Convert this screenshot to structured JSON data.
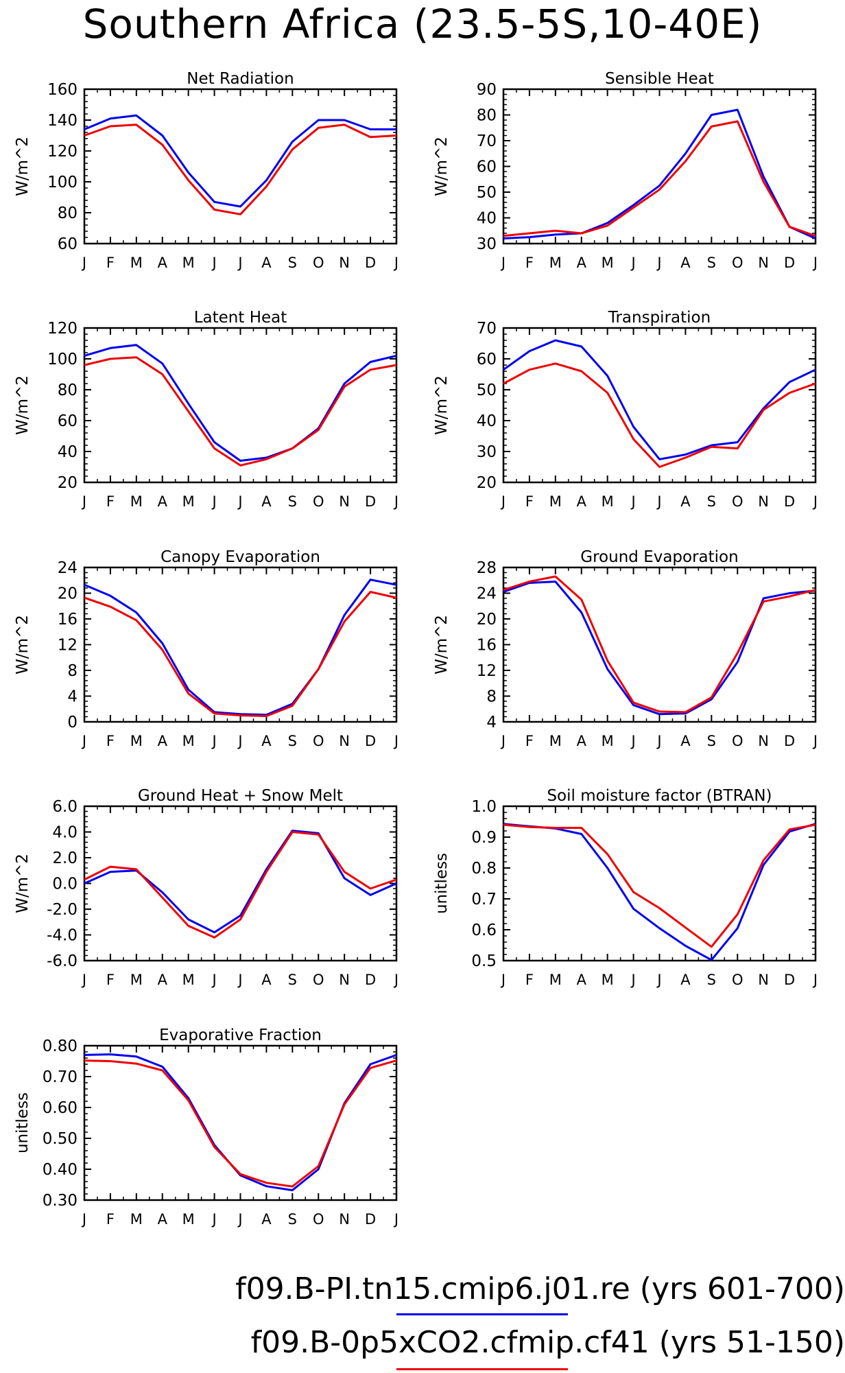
{
  "title": "Southern Africa (23.5-5S,10-40E)",
  "months": [
    "J",
    "F",
    "M",
    "A",
    "M",
    "J",
    "J",
    "A",
    "S",
    "O",
    "N",
    "D",
    "J"
  ],
  "colors": {
    "blue": "#0000ee",
    "red": "#ee0000"
  },
  "legend": [
    {
      "text": "f09.B-PI.tn15.cmip6.j01.re (yrs 601-700)",
      "color": "#0000ee"
    },
    {
      "text": "f09.B-0p5xCO2.cfmip.cf41 (yrs 51-150)",
      "color": "#ee0000"
    }
  ],
  "chart_data": [
    {
      "type": "line",
      "title": "Net Radiation",
      "ylabel": "W/m^2",
      "ylim": [
        60,
        160
      ],
      "yticks": [
        "60",
        "80",
        "100",
        "120",
        "140",
        "160"
      ],
      "series": [
        {
          "color": "#0000ee",
          "values": [
            134,
            141,
            143,
            130,
            106,
            87,
            84,
            101,
            126,
            140,
            140,
            134,
            134
          ]
        },
        {
          "color": "#ee0000",
          "values": [
            130,
            136,
            137,
            124,
            101,
            82,
            79,
            97,
            121,
            135,
            137,
            129,
            130
          ]
        }
      ]
    },
    {
      "type": "line",
      "title": "Sensible Heat",
      "ylabel": "W/m^2",
      "ylim": [
        30,
        90
      ],
      "yticks": [
        "30",
        "40",
        "50",
        "60",
        "70",
        "80",
        "90"
      ],
      "series": [
        {
          "color": "#0000ee",
          "values": [
            32,
            32.5,
            33.5,
            34,
            38,
            45,
            52.5,
            65,
            80,
            82,
            56,
            36.5,
            32
          ]
        },
        {
          "color": "#ee0000",
          "values": [
            33,
            34,
            35,
            34,
            37,
            44,
            51,
            62,
            75.5,
            77.5,
            54,
            36.5,
            33
          ]
        }
      ]
    },
    {
      "type": "line",
      "title": "Latent Heat",
      "ylabel": "W/m^2",
      "ylim": [
        20,
        120
      ],
      "yticks": [
        "20",
        "40",
        "60",
        "80",
        "100",
        "120"
      ],
      "series": [
        {
          "color": "#0000ee",
          "values": [
            102,
            107,
            109,
            97,
            71,
            46,
            34,
            36,
            42,
            55,
            84,
            98,
            102
          ]
        },
        {
          "color": "#ee0000",
          "values": [
            96,
            100,
            101,
            90,
            66,
            42,
            31,
            35,
            42,
            54,
            82,
            93,
            96
          ]
        }
      ]
    },
    {
      "type": "line",
      "title": "Transpiration",
      "ylabel": "W/m^2",
      "ylim": [
        20,
        70
      ],
      "yticks": [
        "20",
        "30",
        "40",
        "50",
        "60",
        "70"
      ],
      "series": [
        {
          "color": "#0000ee",
          "values": [
            56.5,
            62.5,
            66,
            64,
            54.5,
            38,
            27.5,
            29,
            32,
            33,
            44,
            52.5,
            56.5
          ]
        },
        {
          "color": "#ee0000",
          "values": [
            52,
            56.5,
            58.5,
            56,
            49,
            34,
            25,
            28,
            31.5,
            31,
            43.5,
            49,
            52
          ]
        }
      ]
    },
    {
      "type": "line",
      "title": "Canopy Evaporation",
      "ylabel": "W/m^2",
      "ylim": [
        0,
        24
      ],
      "yticks": [
        "0",
        "4",
        "8",
        "12",
        "16",
        "20",
        "24"
      ],
      "series": [
        {
          "color": "#0000ee",
          "values": [
            21.3,
            19.6,
            17,
            12.2,
            5,
            1.5,
            1.2,
            1.1,
            2.8,
            8.2,
            16.6,
            22.1,
            21.3
          ]
        },
        {
          "color": "#ee0000",
          "values": [
            19.3,
            17.9,
            15.8,
            11.2,
            4.4,
            1.3,
            1.0,
            0.9,
            2.5,
            8.2,
            15.6,
            20.2,
            19.3
          ]
        }
      ]
    },
    {
      "type": "line",
      "title": "Ground Evaporation",
      "ylabel": "W/m^2",
      "ylim": [
        4,
        28
      ],
      "yticks": [
        "4",
        "8",
        "12",
        "16",
        "20",
        "24",
        "28"
      ],
      "series": [
        {
          "color": "#0000ee",
          "values": [
            24.2,
            25.6,
            25.8,
            21,
            12.2,
            6.6,
            5.2,
            5.3,
            7.5,
            13.3,
            23.2,
            24,
            24.4
          ]
        },
        {
          "color": "#ee0000",
          "values": [
            24.5,
            25.8,
            26.6,
            23,
            13.5,
            7,
            5.6,
            5.5,
            7.8,
            14.7,
            22.7,
            23.5,
            24.5
          ]
        }
      ]
    },
    {
      "type": "line",
      "title": "Ground Heat + Snow Melt",
      "ylabel": "W/m^2",
      "ylim": [
        -6,
        6
      ],
      "yticks": [
        "-6.0",
        "-4.0",
        "-2.0",
        "0.0",
        "2.0",
        "4.0",
        "6.0"
      ],
      "series": [
        {
          "color": "#0000ee",
          "values": [
            0.0,
            0.9,
            1.0,
            -0.7,
            -2.8,
            -3.8,
            -2.5,
            1.1,
            4.1,
            3.9,
            0.4,
            -0.9,
            0.0
          ]
        },
        {
          "color": "#ee0000",
          "values": [
            0.3,
            1.3,
            1.1,
            -1.1,
            -3.3,
            -4.2,
            -2.8,
            0.9,
            4.0,
            3.8,
            0.9,
            -0.4,
            0.3
          ]
        }
      ]
    },
    {
      "type": "line",
      "title": "Soil moisture factor (BTRAN)",
      "ylabel": "unitless",
      "ylim": [
        0.5,
        1.0
      ],
      "yticks": [
        "0.5",
        "0.6",
        "0.7",
        "0.8",
        "0.9",
        "1.0"
      ],
      "series": [
        {
          "color": "#0000ee",
          "values": [
            0.943,
            0.935,
            0.928,
            0.91,
            0.8,
            0.668,
            0.605,
            0.548,
            0.502,
            0.605,
            0.81,
            0.918,
            0.943
          ]
        },
        {
          "color": "#ee0000",
          "values": [
            0.94,
            0.933,
            0.93,
            0.93,
            0.845,
            0.722,
            0.67,
            0.607,
            0.545,
            0.65,
            0.825,
            0.925,
            0.94
          ]
        }
      ]
    },
    {
      "type": "line",
      "title": "Evaporative Fraction",
      "ylabel": "unitless",
      "ylim": [
        0.3,
        0.8
      ],
      "yticks": [
        "0.30",
        "0.40",
        "0.50",
        "0.60",
        "0.70",
        "0.80"
      ],
      "series": [
        {
          "color": "#0000ee",
          "values": [
            0.77,
            0.772,
            0.765,
            0.732,
            0.63,
            0.478,
            0.38,
            0.345,
            0.332,
            0.4,
            0.614,
            0.74,
            0.77
          ]
        },
        {
          "color": "#ee0000",
          "values": [
            0.752,
            0.75,
            0.742,
            0.72,
            0.623,
            0.472,
            0.384,
            0.356,
            0.344,
            0.41,
            0.61,
            0.728,
            0.752
          ]
        }
      ]
    }
  ]
}
